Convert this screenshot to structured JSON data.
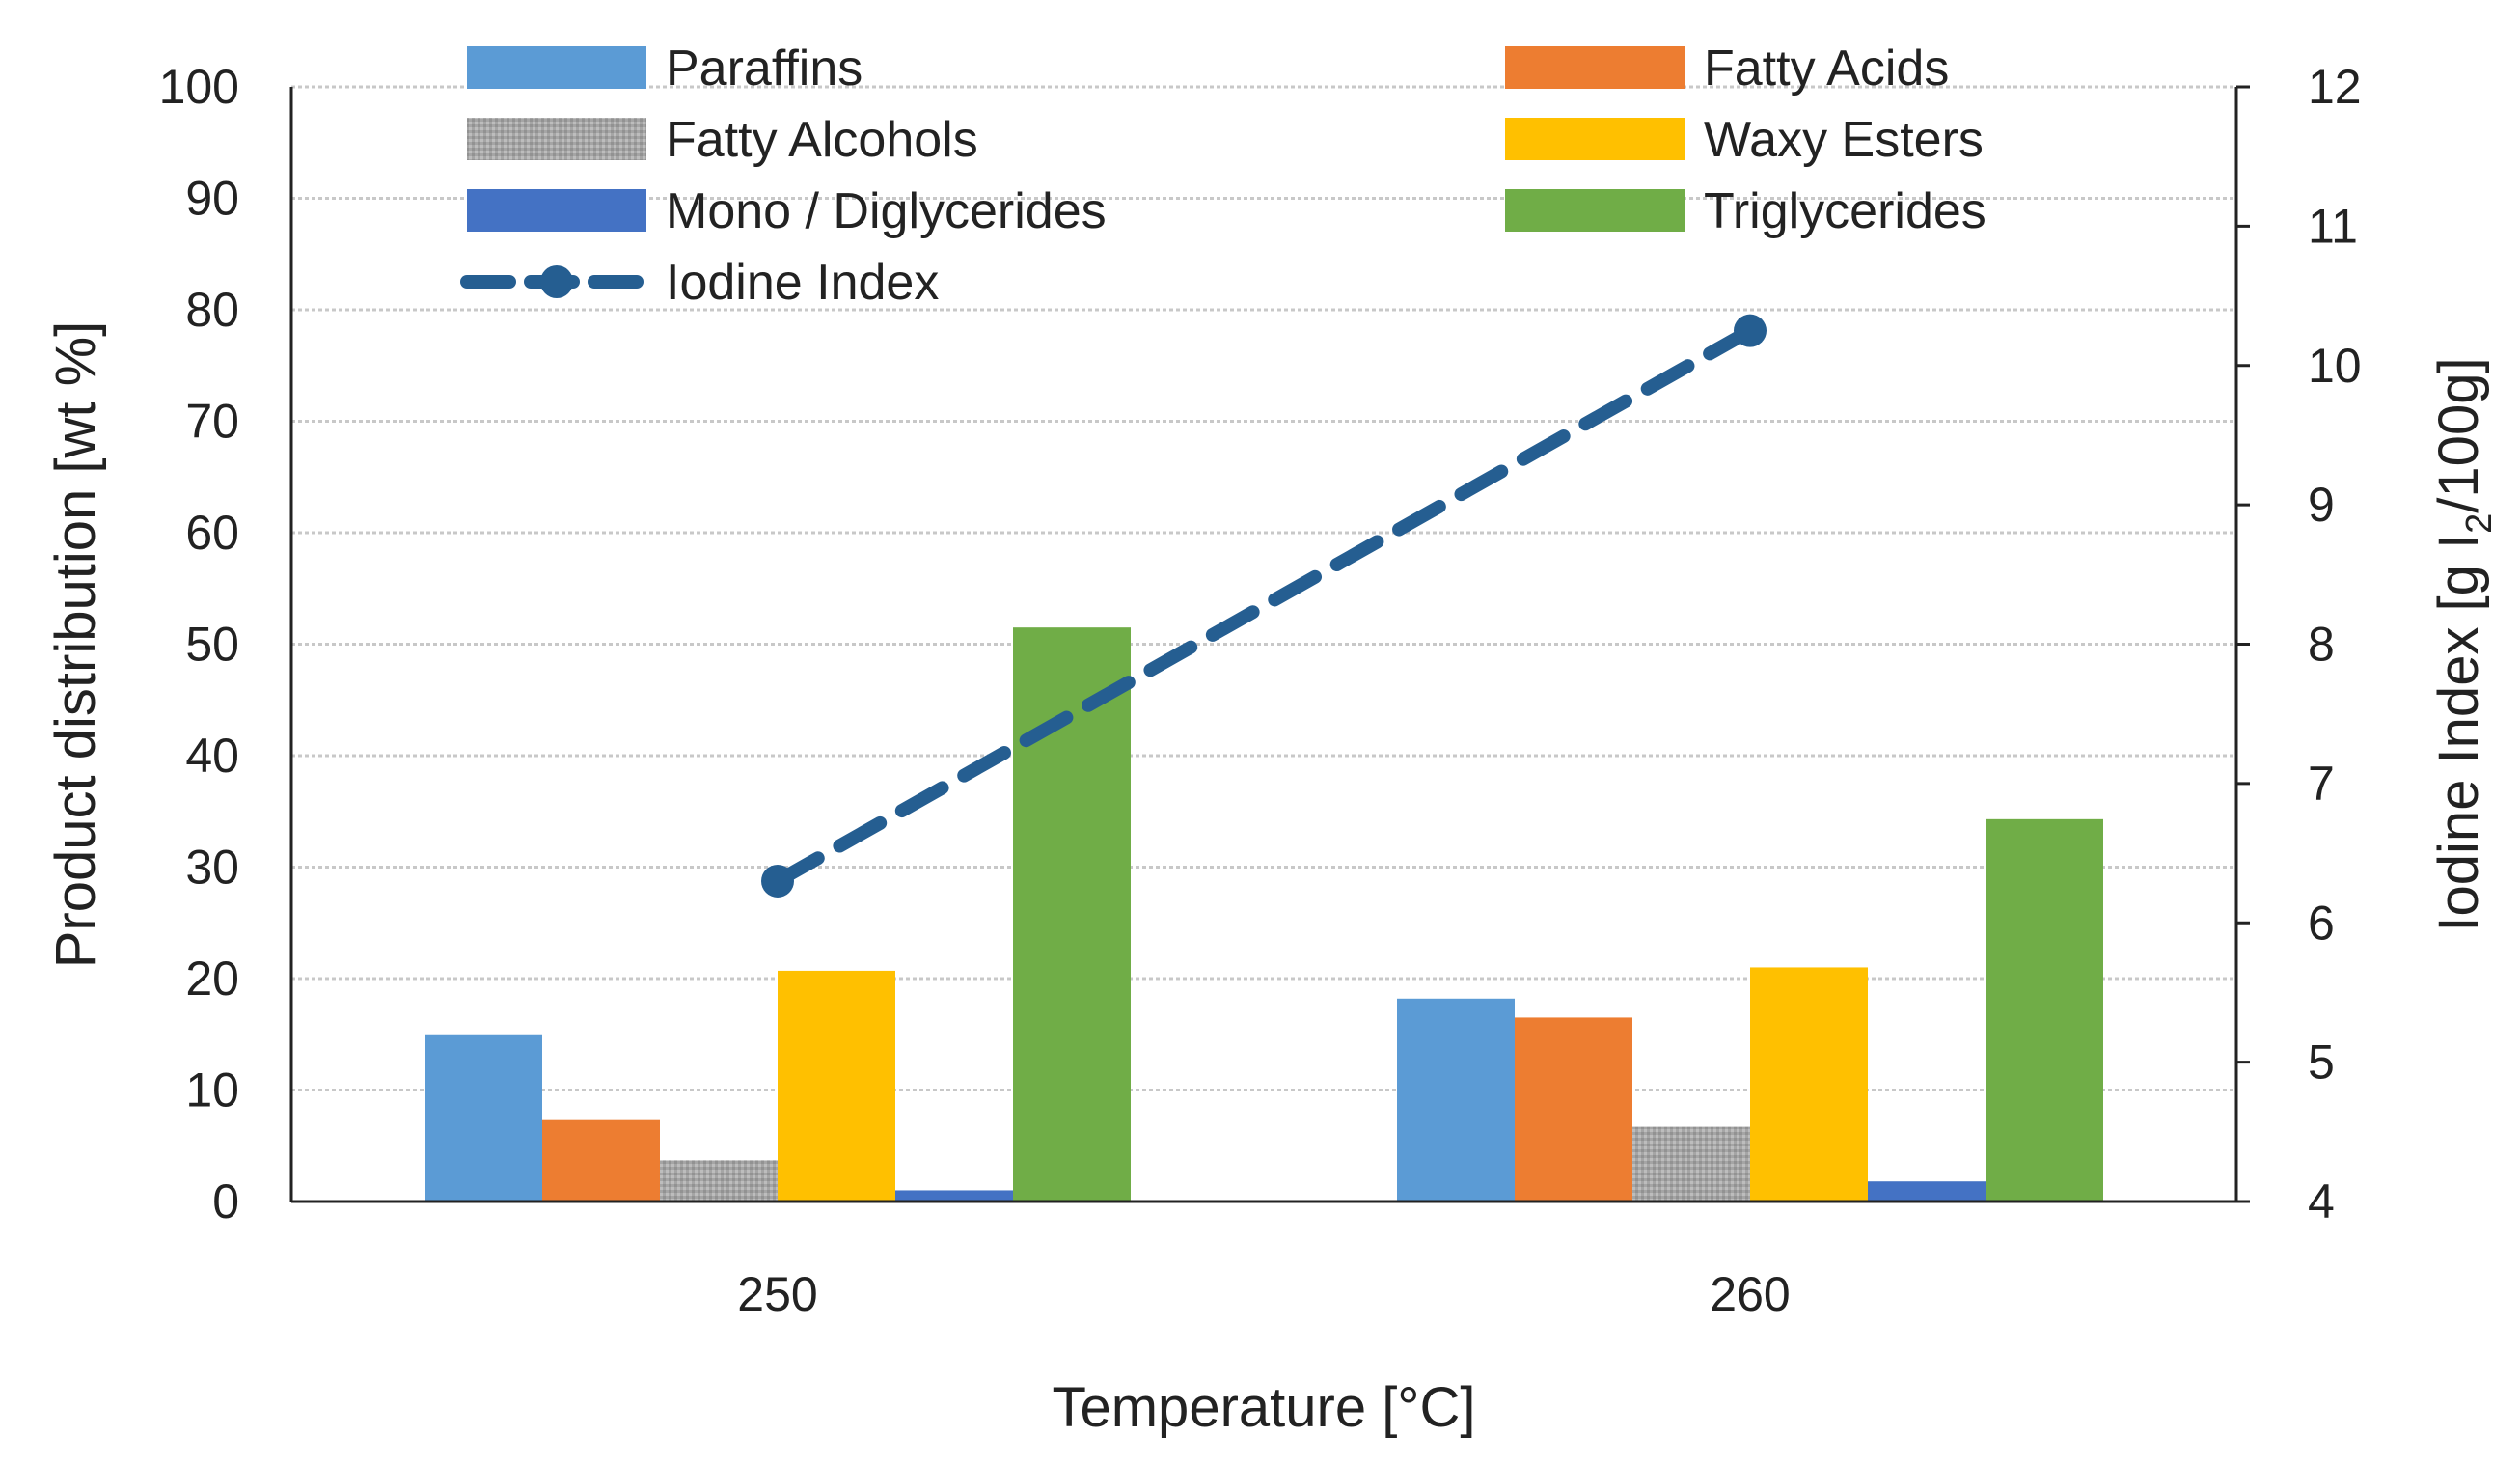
{
  "chart_data": {
    "type": "bar",
    "categories": [
      "250",
      "260"
    ],
    "xlabel": "Temperature [°C]",
    "ylabel": "Product distribution [wt %]",
    "ylim": [
      0,
      100
    ],
    "yticks": [
      "0",
      "10",
      "20",
      "30",
      "40",
      "50",
      "60",
      "70",
      "80",
      "90",
      "100"
    ],
    "y2label_main": "Iodine Index [g I",
    "y2label_sub": "2",
    "y2label_tail": "/100g]",
    "y2lim": [
      4,
      12
    ],
    "y2ticks": [
      "4",
      "5",
      "6",
      "7",
      "8",
      "9",
      "10",
      "11",
      "12"
    ],
    "series": [
      {
        "name": "Paraffins",
        "color": "#5b9bd5",
        "values": [
          15,
          18.2
        ]
      },
      {
        "name": "Fatty Acids",
        "color": "#ed7d31",
        "values": [
          7.3,
          16.5
        ]
      },
      {
        "name": "Fatty Alcohols",
        "color": "#a5a5a5",
        "values": [
          3.7,
          6.7
        ]
      },
      {
        "name": "Waxy Esters",
        "color": "#ffc000",
        "values": [
          20.7,
          21
        ]
      },
      {
        "name": "Mono / Diglycerides",
        "color": "#4472c4",
        "values": [
          1,
          1.8
        ]
      },
      {
        "name": "Triglycerides",
        "color": "#70ad47",
        "values": [
          51.5,
          34.3
        ]
      }
    ],
    "line_series": {
      "name": "Iodine Index",
      "color": "#255e91",
      "axis": "secondary",
      "values": [
        6.3,
        10.25
      ]
    },
    "grid": true
  }
}
